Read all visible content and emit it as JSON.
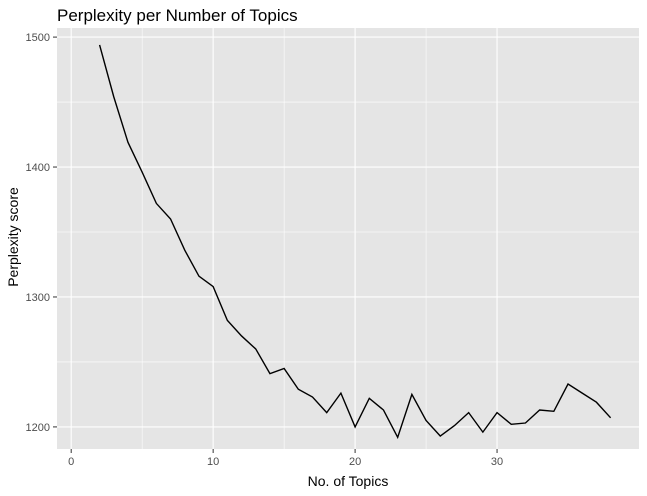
{
  "chart_data": {
    "type": "line",
    "title": "Perplexity per Number of Topics",
    "xlabel": "No. of Topics",
    "ylabel": "Perplexity score",
    "xlim": [
      -1,
      40
    ],
    "ylim": [
      1183,
      1507
    ],
    "x_ticks": [
      0,
      10,
      20,
      30
    ],
    "y_ticks": [
      1200,
      1300,
      1400,
      1500
    ],
    "x_tick_labels": [
      "0",
      "10",
      "20",
      "30"
    ],
    "y_tick_labels": [
      "1200",
      "1300",
      "1400",
      "1500"
    ],
    "grid": true,
    "panel_color": "#e5e5e5",
    "grid_color": "#ffffff",
    "line_color": "#000000",
    "series": [
      {
        "x": [
          2,
          3,
          4,
          5,
          6,
          7,
          8,
          9,
          10,
          11,
          12,
          13,
          14,
          15,
          16,
          17,
          18,
          19,
          20,
          21,
          22,
          23,
          24,
          25,
          26,
          27,
          28,
          29,
          30,
          31,
          32,
          33,
          34,
          35,
          36,
          37,
          38
        ],
        "values": [
          1494,
          1454,
          1419,
          1396,
          1372,
          1360,
          1336,
          1316,
          1308,
          1282,
          1270,
          1260,
          1241,
          1245,
          1229,
          1223,
          1211,
          1226,
          1200,
          1222,
          1213,
          1192,
          1225,
          1205,
          1193,
          1201,
          1211,
          1196,
          1211,
          1202,
          1203,
          1213,
          1212,
          1233,
          1226,
          1219,
          1207
        ]
      }
    ]
  }
}
